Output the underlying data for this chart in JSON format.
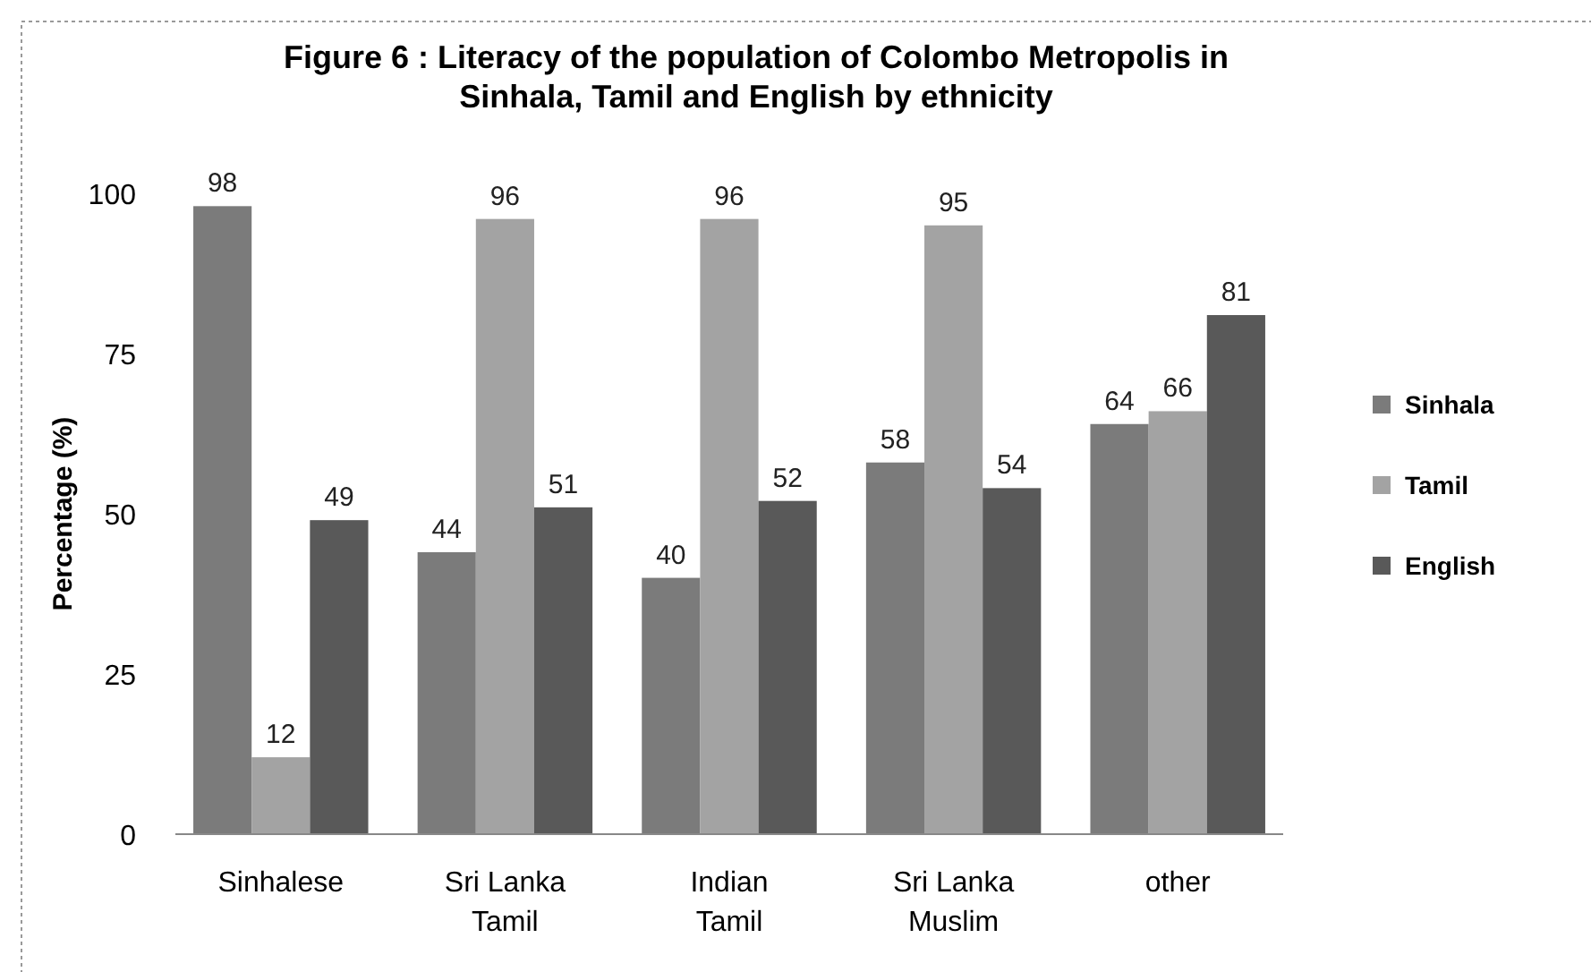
{
  "chart_data": {
    "type": "bar",
    "title": "Figure 6 : Literacy of the population of Colombo Metropolis in Sinhala, Tamil and English by ethnicity",
    "ylabel": "Percentage (%)",
    "categories": [
      "Sinhalese",
      "Sri Lanka Tamil",
      "Indian Tamil",
      "Sri Lanka Muslim",
      "other"
    ],
    "series": [
      {
        "name": "Sinhala",
        "color": "#7b7b7b",
        "values": [
          98,
          44,
          40,
          58,
          64
        ]
      },
      {
        "name": "Tamil",
        "color": "#a3a3a3",
        "values": [
          12,
          96,
          96,
          95,
          66
        ]
      },
      {
        "name": "English",
        "color": "#595959",
        "values": [
          49,
          51,
          52,
          54,
          81
        ]
      }
    ],
    "ylim": [
      0,
      100
    ],
    "yticks": [
      0,
      25,
      50,
      75,
      100
    ],
    "data_labels": true,
    "legend": "right"
  }
}
